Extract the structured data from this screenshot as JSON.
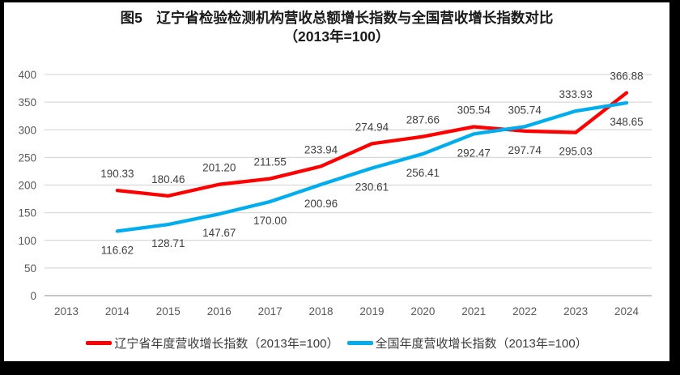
{
  "title": {
    "line1": "图5　辽宁省检验检测机构营收总额增长指数与全国营收增长指数对比",
    "line2": "（2013年=100）"
  },
  "chart_data": {
    "type": "line",
    "categories": [
      "2013",
      "2014",
      "2015",
      "2016",
      "2017",
      "2018",
      "2019",
      "2020",
      "2021",
      "2022",
      "2023",
      "2024"
    ],
    "series": [
      {
        "name": "辽宁省年度营收增长指数（2013年=100）",
        "color": "#fe0000",
        "values": [
          null,
          190.33,
          180.46,
          201.2,
          211.55,
          233.94,
          274.94,
          287.66,
          305.54,
          297.74,
          295.03,
          366.88
        ]
      },
      {
        "name": "全国年度营收增长指数（2013年=100）",
        "color": "#00aeef",
        "values": [
          null,
          116.62,
          128.71,
          147.67,
          170.0,
          200.96,
          230.61,
          256.41,
          292.47,
          305.74,
          333.93,
          348.65
        ]
      }
    ],
    "ylim": [
      0,
      400
    ],
    "ytick_step": 50,
    "grid": true,
    "data_labels": true,
    "label_decimals": 2,
    "legend_position": "bottom"
  },
  "style_colors": {
    "gridline": "#d9d9d9",
    "axis_line": "#c6c6c6",
    "tick_label": "#595959",
    "data_label": "#404040",
    "frame": "#000000",
    "background": "#ffffff"
  }
}
